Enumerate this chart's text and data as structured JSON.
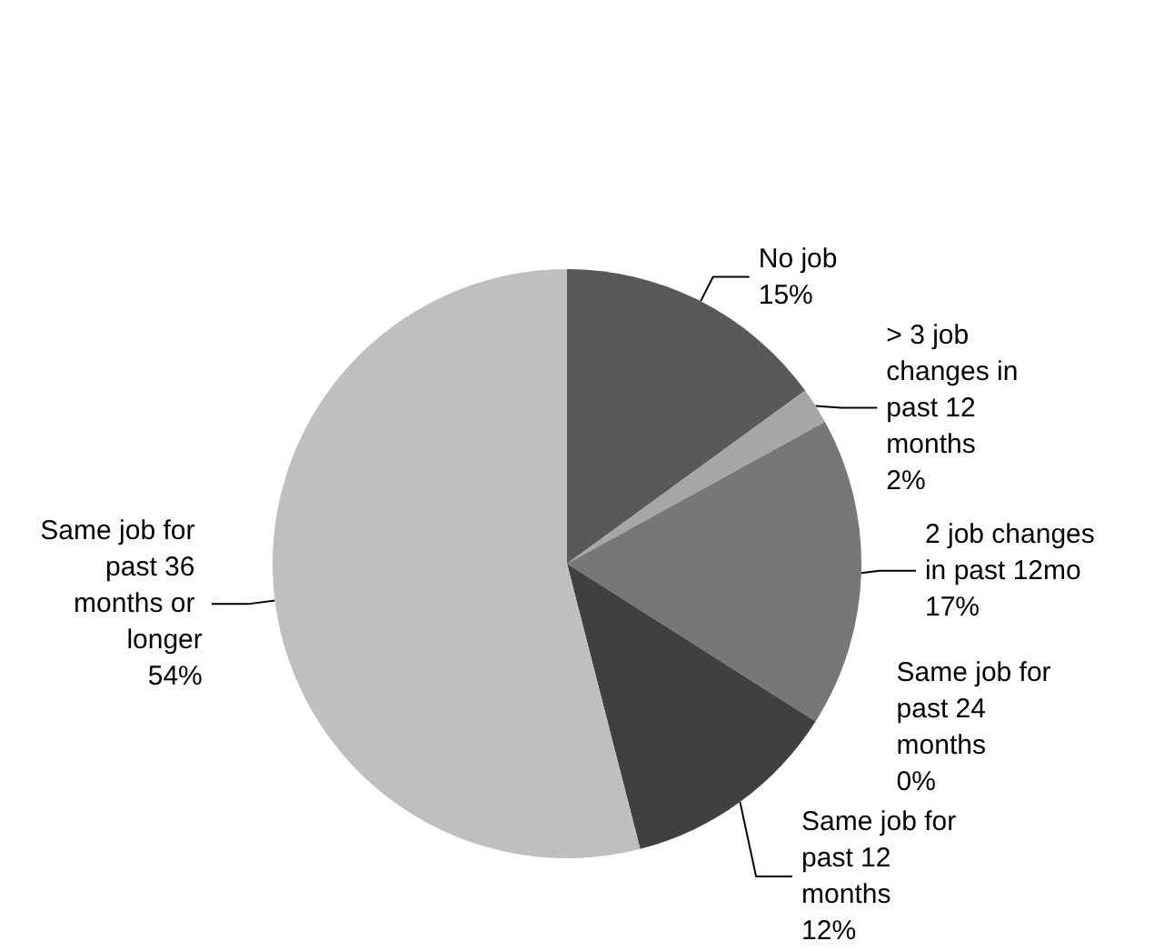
{
  "chart_data": {
    "type": "pie",
    "categories": [
      "No job",
      "> 3 job changes in past 12 months",
      "2 job changes in past 12mo",
      "Same job for past 24 months",
      "Same job for past 12 months",
      "Same job for past 36 months or longer"
    ],
    "values": [
      15,
      2,
      17,
      0,
      12,
      54
    ],
    "value_labels": [
      "15%",
      "2%",
      "17%",
      "0%",
      "12%",
      "54%"
    ],
    "colors": [
      "#595959",
      "#a6a6a6",
      "#777777",
      "#8c8c8c",
      "#404040",
      "#bfbfbf"
    ],
    "legend": false
  }
}
